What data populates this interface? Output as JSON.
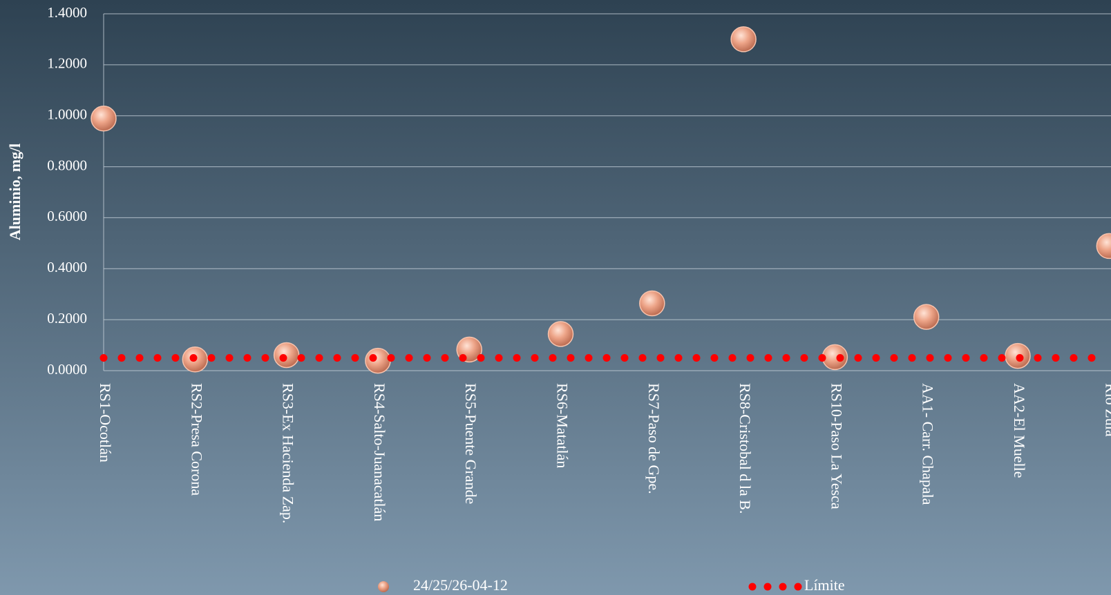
{
  "chart_data": {
    "type": "scatter",
    "y_label": "Aluminio, mg/l",
    "categories": [
      "RS1-Ocotlán",
      "RS2-Presa Corona",
      "RS3-Ex Hacienda Zap.",
      "RS4-Salto-Juanacatlán",
      "RS5-Puente Grande",
      "RS6-Matatlán",
      "RS7-Paso de Gpe.",
      "RS8-Cristobal d la B.",
      "RS10-Paso La Yesca",
      "AA1- Carr. Chapala",
      "AA2-El Muelle",
      "Río Zula"
    ],
    "series": [
      {
        "name": "24/25/26-04-12",
        "color": "#e8977c",
        "values": [
          0.989,
          0.044,
          0.061,
          0.039,
          0.083,
          0.144,
          0.264,
          1.3,
          0.053,
          0.211,
          0.058,
          0.489
        ]
      },
      {
        "name": "Límite",
        "color": "#ff0000",
        "values": [
          0.05,
          0.05,
          0.05,
          0.05,
          0.05,
          0.05,
          0.05,
          0.05,
          0.05,
          0.05,
          0.05,
          0.05
        ]
      }
    ],
    "ylim": [
      0,
      1.4
    ],
    "yticks": [
      {
        "value": 0,
        "label": "0.0000"
      },
      {
        "value": 0.2,
        "label": "0.2000"
      },
      {
        "value": 0.4,
        "label": "0.4000"
      },
      {
        "value": 0.6,
        "label": "0.6000"
      },
      {
        "value": 0.8,
        "label": "0.8000"
      },
      {
        "value": 1,
        "label": "1.0000"
      },
      {
        "value": 1.2,
        "label": "1.2000"
      },
      {
        "value": 1.4,
        "label": "1.4000"
      }
    ],
    "grid": true
  }
}
